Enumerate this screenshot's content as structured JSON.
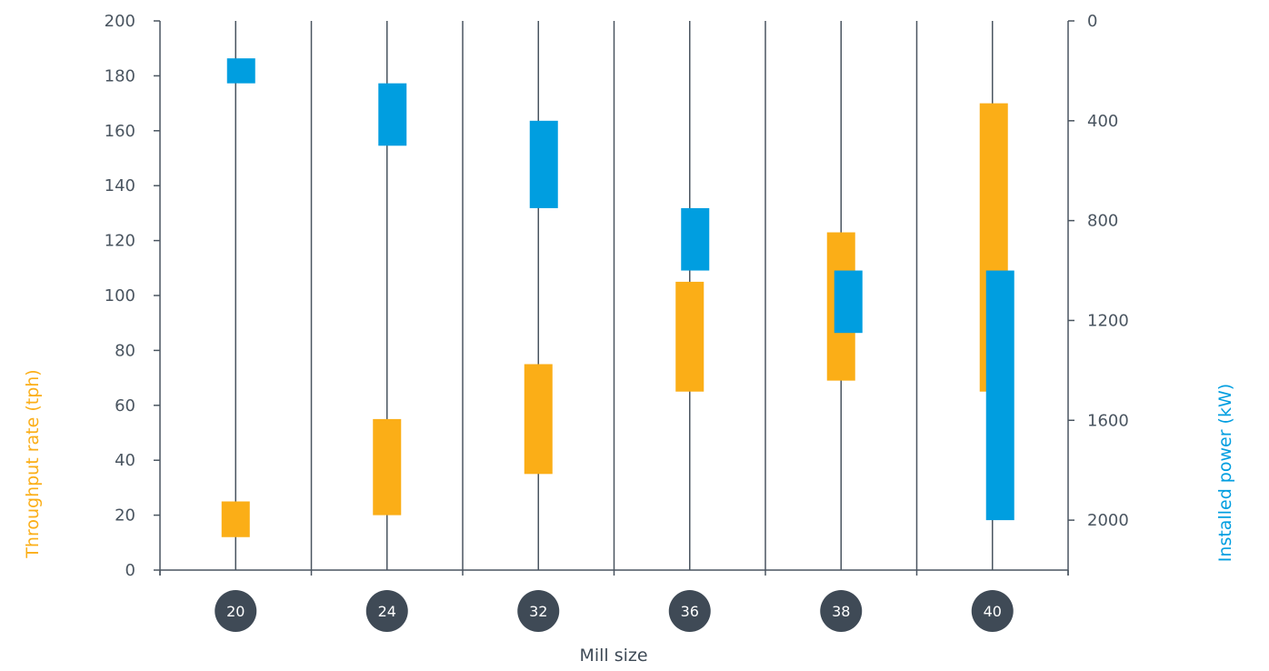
{
  "chart_data": {
    "type": "bar",
    "subtype": "floating-range",
    "categories": [
      "20",
      "24",
      "32",
      "36",
      "38",
      "40"
    ],
    "xlabel": "Mill size",
    "y_left": {
      "label": "Throughput rate (tph)",
      "range": [
        0,
        200
      ],
      "ticks": [
        0,
        20,
        40,
        60,
        80,
        100,
        120,
        140,
        160,
        180,
        200
      ],
      "color": "#fbae17"
    },
    "y_right": {
      "label": "Installed power (kW)",
      "range": [
        0,
        2200
      ],
      "inverted": true,
      "ticks": [
        0,
        400,
        800,
        1200,
        1600,
        2000
      ],
      "color": "#009ee0"
    },
    "series": [
      {
        "axis": "left",
        "color": "#fbae17",
        "ranges": [
          [
            12,
            25
          ],
          [
            20,
            55
          ],
          [
            35,
            75
          ],
          [
            65,
            105
          ],
          [
            69,
            123
          ],
          [
            65,
            170
          ]
        ]
      },
      {
        "axis": "right",
        "color": "#009ee0",
        "ranges": [
          [
            150,
            250
          ],
          [
            250,
            500
          ],
          [
            400,
            750
          ],
          [
            750,
            1000
          ],
          [
            1000,
            1250
          ],
          [
            1000,
            2000
          ]
        ]
      }
    ],
    "grid": "vertical",
    "colors": {
      "axis": "#4a5560",
      "category_badge": "#3f4a56"
    }
  }
}
